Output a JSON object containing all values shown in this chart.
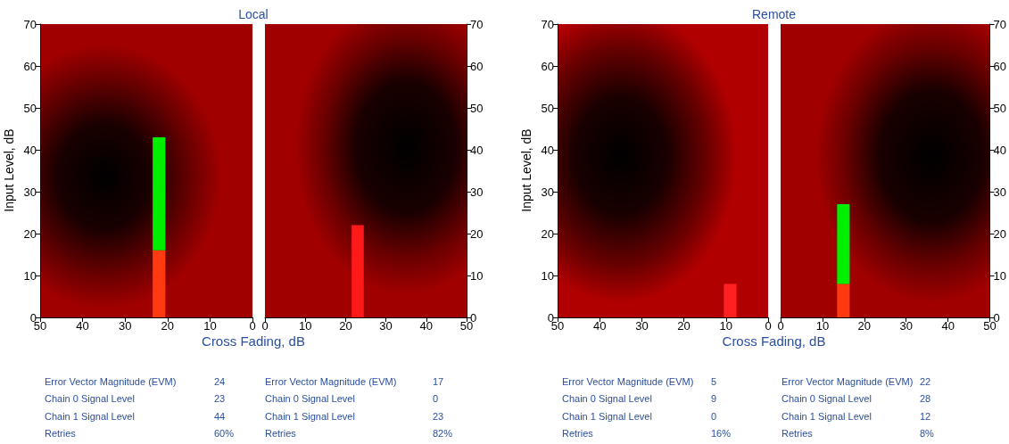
{
  "chart_data": [
    {
      "type": "bar",
      "title": "Local",
      "xlabel": "Cross Fading, dB",
      "ylabel": "Input Level, dB",
      "x": [
        22
      ],
      "xlim": [
        50,
        0
      ],
      "xticks": [
        50,
        40,
        30,
        20,
        10,
        0
      ],
      "ylim": [
        0,
        70
      ],
      "yticks": [
        0,
        10,
        20,
        30,
        40,
        50,
        60,
        70
      ],
      "stacked": true,
      "series": [
        {
          "color": "#ff3a10",
          "values": [
            16
          ]
        },
        {
          "color": "#00ee00",
          "values": [
            27
          ]
        }
      ]
    },
    {
      "type": "bar",
      "x": [
        23
      ],
      "xlim": [
        0,
        50
      ],
      "xticks": [
        0,
        10,
        20,
        30,
        40,
        50
      ],
      "ylim": [
        0,
        70
      ],
      "yticks": [
        0,
        10,
        20,
        30,
        40,
        50,
        60,
        70
      ],
      "series": [
        {
          "color": "#ff1a1a",
          "values": [
            22
          ]
        }
      ]
    },
    {
      "type": "bar",
      "title": "Remote",
      "xlabel": "Cross Fading, dB",
      "ylabel": "Input Level, dB",
      "x": [
        9
      ],
      "xlim": [
        50,
        0
      ],
      "xticks": [
        50,
        40,
        30,
        20,
        10,
        0
      ],
      "ylim": [
        0,
        70
      ],
      "yticks": [
        0,
        10,
        20,
        30,
        40,
        50,
        60,
        70
      ],
      "series": [
        {
          "color": "#ff2020",
          "values": [
            8
          ]
        }
      ]
    },
    {
      "type": "bar",
      "x": [
        15
      ],
      "xlim": [
        0,
        50
      ],
      "xticks": [
        0,
        10,
        20,
        30,
        40,
        50
      ],
      "ylim": [
        0,
        70
      ],
      "yticks": [
        0,
        10,
        20,
        30,
        40,
        50,
        60,
        70
      ],
      "stacked": true,
      "series": [
        {
          "color": "#ff3a10",
          "values": [
            8
          ]
        },
        {
          "color": "#00ee00",
          "values": [
            19
          ]
        }
      ]
    },
    {
      "type": "other",
      "categories": [
        "Error Vector Magnitude (EVM)",
        "Chain 0 Signal Level",
        "Chain 1 Signal Level",
        "Retries"
      ],
      "values": [
        24,
        23,
        44,
        60
      ],
      "value_labels": [
        "24",
        "23",
        "44",
        "60%"
      ]
    },
    {
      "type": "other",
      "categories": [
        "Error Vector Magnitude (EVM)",
        "Chain 0 Signal Level",
        "Chain 1 Signal Level",
        "Retries"
      ],
      "values": [
        17,
        0,
        23,
        82
      ],
      "value_labels": [
        "17",
        "0",
        "23",
        "82%"
      ]
    },
    {
      "type": "other",
      "categories": [
        "Error Vector Magnitude (EVM)",
        "Chain 0 Signal Level",
        "Chain 1 Signal Level",
        "Retries"
      ],
      "values": [
        5,
        9,
        0,
        16
      ],
      "value_labels": [
        "5",
        "9",
        "0",
        "16%"
      ]
    },
    {
      "type": "other",
      "categories": [
        "Error Vector Magnitude (EVM)",
        "Chain 0 Signal Level",
        "Chain 1 Signal Level",
        "Retries"
      ],
      "values": [
        22,
        28,
        12,
        8
      ],
      "value_labels": [
        "22",
        "28",
        "12",
        "8%"
      ]
    }
  ]
}
